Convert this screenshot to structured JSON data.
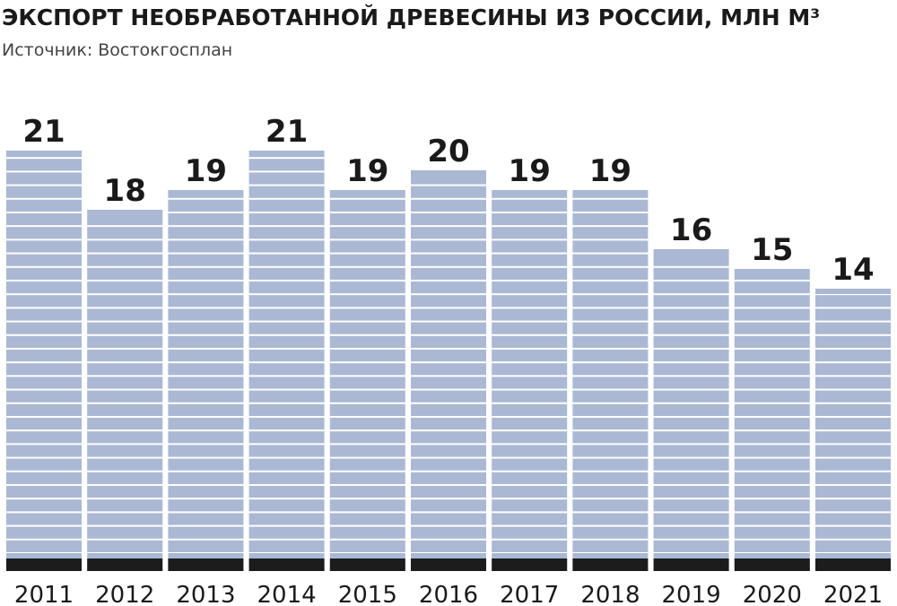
{
  "chart_data": {
    "type": "bar",
    "title": "ЭКСПОРТ НЕОБРАБОТАННОЙ ДРЕВЕСИНЫ ИЗ РОССИИ, МЛН М³",
    "subtitle": "Источник: Востокгосплан",
    "categories": [
      "2011",
      "2012",
      "2013",
      "2014",
      "2015",
      "2016",
      "2017",
      "2018",
      "2019",
      "2020",
      "2021"
    ],
    "values": [
      21,
      18,
      19,
      21,
      19,
      20,
      19,
      19,
      16,
      15,
      14
    ],
    "color": "#aab8d4"
  }
}
